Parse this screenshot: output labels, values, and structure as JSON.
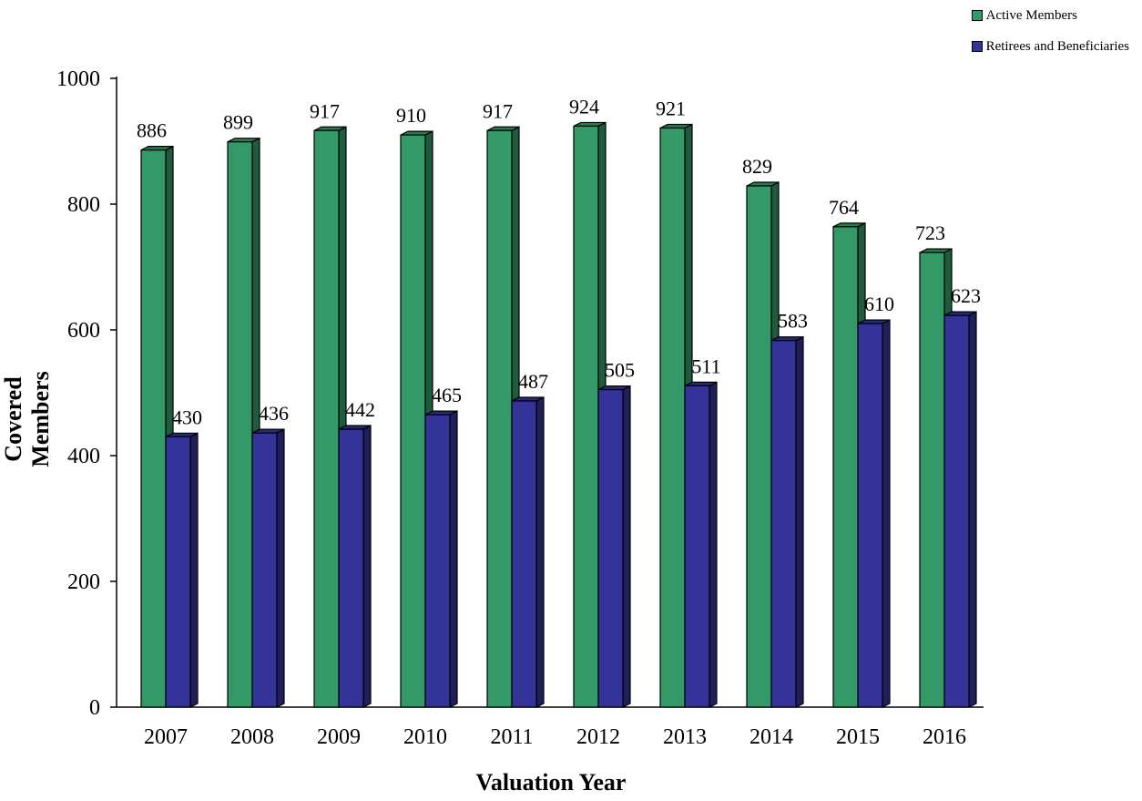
{
  "chart_data": {
    "type": "bar",
    "categories": [
      "2007",
      "2008",
      "2009",
      "2010",
      "2011",
      "2012",
      "2013",
      "2014",
      "2015",
      "2016"
    ],
    "series": [
      {
        "name": "Active Members",
        "color": "#339966",
        "values": [
          886,
          899,
          917,
          910,
          917,
          924,
          921,
          829,
          764,
          723
        ]
      },
      {
        "name": "Retirees and Beneficiaries",
        "color": "#333399",
        "values": [
          430,
          436,
          442,
          465,
          487,
          505,
          511,
          583,
          610,
          623
        ]
      }
    ],
    "xlabel": "Valuation Year",
    "ylabel": "Covered Members",
    "ylim": [
      0,
      1000
    ],
    "yticks": [
      0,
      200,
      400,
      600,
      800,
      1000
    ],
    "yticks_labels": [
      "0",
      "200",
      "400",
      "600",
      "800",
      "1000"
    ],
    "grid": false,
    "legend_position": "top-right"
  }
}
